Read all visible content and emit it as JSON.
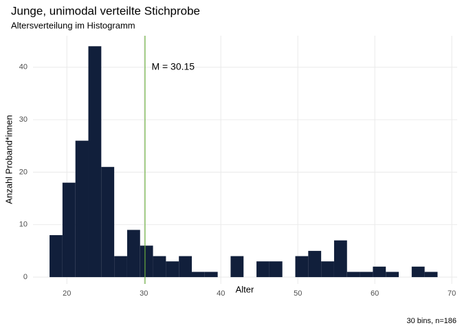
{
  "chart_data": {
    "type": "histogram",
    "title": "Junge, unimodal verteilte Stichprobe",
    "subtitle": "Altersverteilung im Histogramm",
    "x_label": "Alter",
    "y_label": "Anzahl Proband*innen",
    "caption": "30 bins, n=186",
    "bins": [
      17.75,
      19.43,
      21.11,
      22.79,
      24.47,
      26.15,
      27.83,
      29.51,
      31.19,
      32.87,
      34.55,
      36.23,
      37.91,
      39.59,
      41.27,
      42.95,
      44.63,
      46.31,
      47.99,
      49.67,
      51.35,
      53.03,
      54.71,
      56.39,
      58.07,
      59.75,
      61.43,
      63.11,
      64.79,
      66.47,
      68.15
    ],
    "counts": [
      8,
      18,
      26,
      44,
      21,
      4,
      9,
      6,
      4,
      3,
      4,
      1,
      1,
      0,
      4,
      0,
      3,
      3,
      0,
      4,
      5,
      3,
      7,
      1,
      1,
      2,
      1,
      0,
      2,
      1
    ],
    "color": "#111f3b",
    "xlim": [
      15.6,
      70.7
    ],
    "ylim": [
      -1.3,
      46
    ],
    "xticks": [
      20,
      30,
      40,
      50,
      60,
      70
    ],
    "yticks": [
      0,
      10,
      20,
      30,
      40
    ],
    "grid": true,
    "vline": {
      "x": 30.15,
      "color": "#6aad3d"
    },
    "annotations": [
      {
        "text": "M = 30.15",
        "x": 31,
        "y": 40
      }
    ]
  }
}
